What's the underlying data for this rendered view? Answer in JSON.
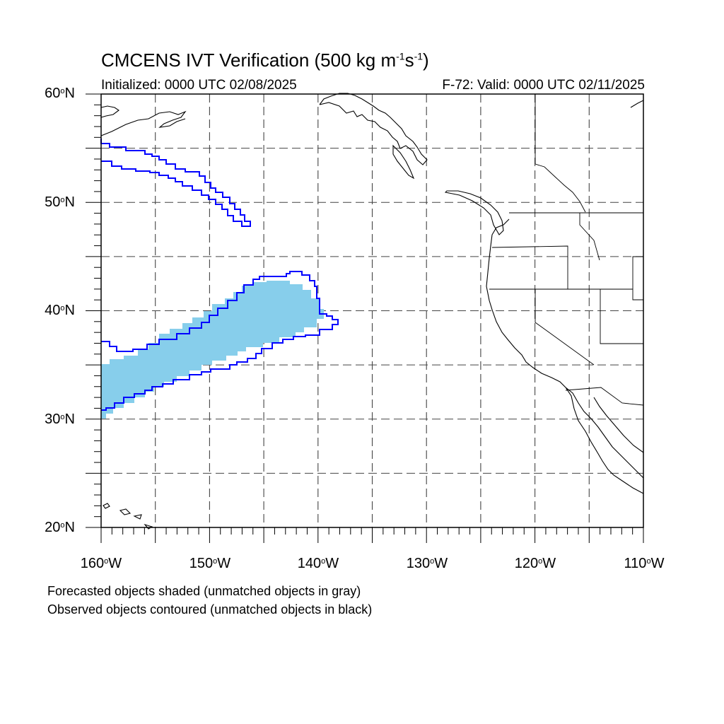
{
  "title": {
    "prefix": "CMCENS IVT Verification (500 kg m",
    "exp1": "-1",
    "mid": "s",
    "exp2": "-1",
    "suffix": ")"
  },
  "subtitle_left": "Initialized: 0000 UTC 02/08/2025",
  "subtitle_right": "F-72: Valid: 0000 UTC 02/11/2025",
  "y_axis": {
    "ticks": [
      {
        "value": "60",
        "suffix": "N"
      },
      {
        "value": "50",
        "suffix": "N"
      },
      {
        "value": "40",
        "suffix": "N"
      },
      {
        "value": "30",
        "suffix": "N"
      },
      {
        "value": "20",
        "suffix": "N"
      }
    ]
  },
  "x_axis": {
    "ticks": [
      {
        "value": "160",
        "suffix": "W"
      },
      {
        "value": "150",
        "suffix": "W"
      },
      {
        "value": "140",
        "suffix": "W"
      },
      {
        "value": "130",
        "suffix": "W"
      },
      {
        "value": "120",
        "suffix": "W"
      },
      {
        "value": "110",
        "suffix": "W"
      }
    ]
  },
  "notes": [
    "Forecasted objects shaded (unmatched objects in gray)",
    "Observed objects contoured (unmatched objects in black)"
  ],
  "map": {
    "lon_range": [
      -160,
      -110
    ],
    "lat_range": [
      20,
      60
    ],
    "grid_spacing_deg": 5,
    "forecast_fill_color": "#87ceeb",
    "observed_contour_color": "#0000ff",
    "coastline_color": "#000000"
  }
}
